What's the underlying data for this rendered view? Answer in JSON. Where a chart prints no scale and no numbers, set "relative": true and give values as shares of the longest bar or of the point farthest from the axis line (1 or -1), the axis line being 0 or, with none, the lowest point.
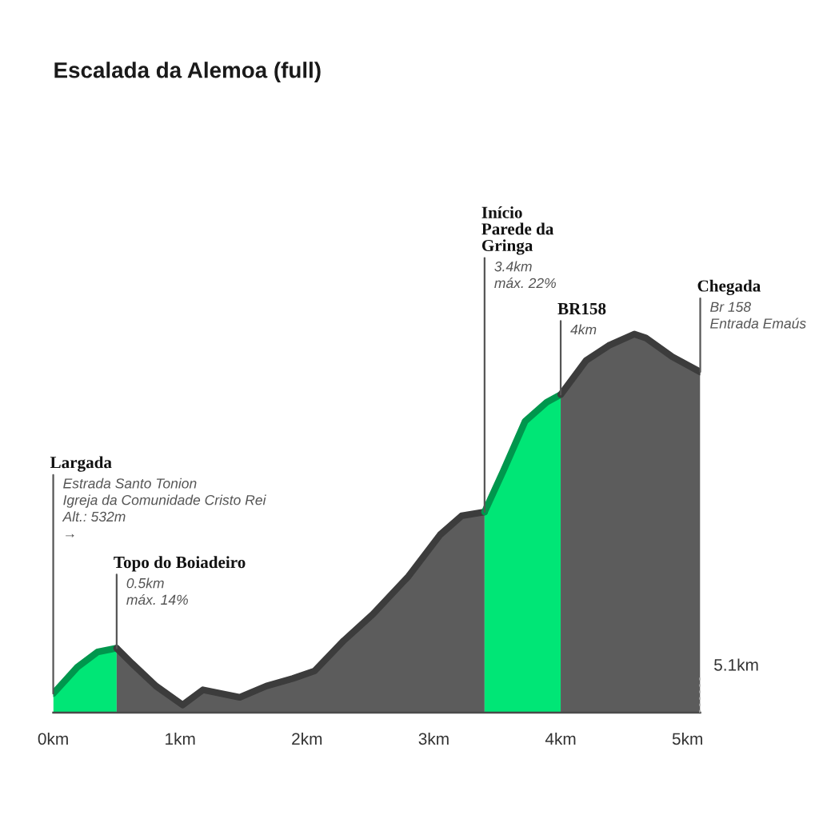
{
  "chart_data": {
    "type": "area",
    "title": "Escalada da Alemoa (full)",
    "relative": true,
    "xlim": [
      0,
      5.1
    ],
    "xticks": [
      {
        "value": 0,
        "label": "0km"
      },
      {
        "value": 1,
        "label": "1km"
      },
      {
        "value": 2,
        "label": "2km"
      },
      {
        "value": 3,
        "label": "3km"
      },
      {
        "value": 4,
        "label": "4km"
      },
      {
        "value": 5,
        "label": "5km"
      }
    ],
    "series": [
      {
        "color": "#00e676",
        "x": [
          0,
          0.19,
          0.35,
          0.5
        ],
        "values": [
          0.05,
          0.12,
          0.16,
          0.17
        ]
      },
      {
        "color": "#5c5c5c",
        "x": [
          0.5,
          0.62,
          0.81,
          1.02,
          1.18,
          1.47,
          1.68,
          1.89,
          2.06,
          2.29,
          2.52,
          2.8,
          3.05,
          3.22,
          3.4
        ],
        "values": [
          0.17,
          0.13,
          0.07,
          0.02,
          0.06,
          0.04,
          0.07,
          0.09,
          0.11,
          0.19,
          0.26,
          0.36,
          0.47,
          0.52,
          0.53
        ]
      },
      {
        "color": "#00e676",
        "x": [
          3.4,
          3.55,
          3.72,
          3.89,
          4.0
        ],
        "values": [
          0.53,
          0.64,
          0.77,
          0.82,
          0.84
        ]
      },
      {
        "color": "#5c5c5c",
        "x": [
          4.0,
          4.2,
          4.38,
          4.58,
          4.67,
          4.88,
          5.1
        ],
        "values": [
          0.84,
          0.93,
          0.97,
          1.0,
          0.99,
          0.94,
          0.9
        ]
      }
    ],
    "ref_lines": [
      {
        "axis": "x",
        "value": 5.1,
        "label": "5.1km",
        "line_style": "dotted",
        "color": "#9e9e9e"
      }
    ],
    "annotations": [
      {
        "text": "Largada",
        "x": 0,
        "y": 0.05
      },
      "Estrada Santo Tonion",
      "Igreja da Comunidade Cristo Rei",
      "Alt.: 532m",
      "→",
      {
        "text": "Topo do Boiadeiro",
        "x": 0.5,
        "y": 0.17
      },
      "0.5km",
      "máx. 14%",
      {
        "text": "Início Parede da Gringa",
        "x": 3.4,
        "y": 0.53
      },
      "3.4km",
      "máx. 22%",
      {
        "text": "BR158",
        "x": 4.0,
        "y": 0.84
      },
      "4km",
      {
        "text": "Chegada",
        "x": 5.1,
        "y": 0.9
      },
      "Br 158",
      "Entrada Emaús"
    ]
  }
}
